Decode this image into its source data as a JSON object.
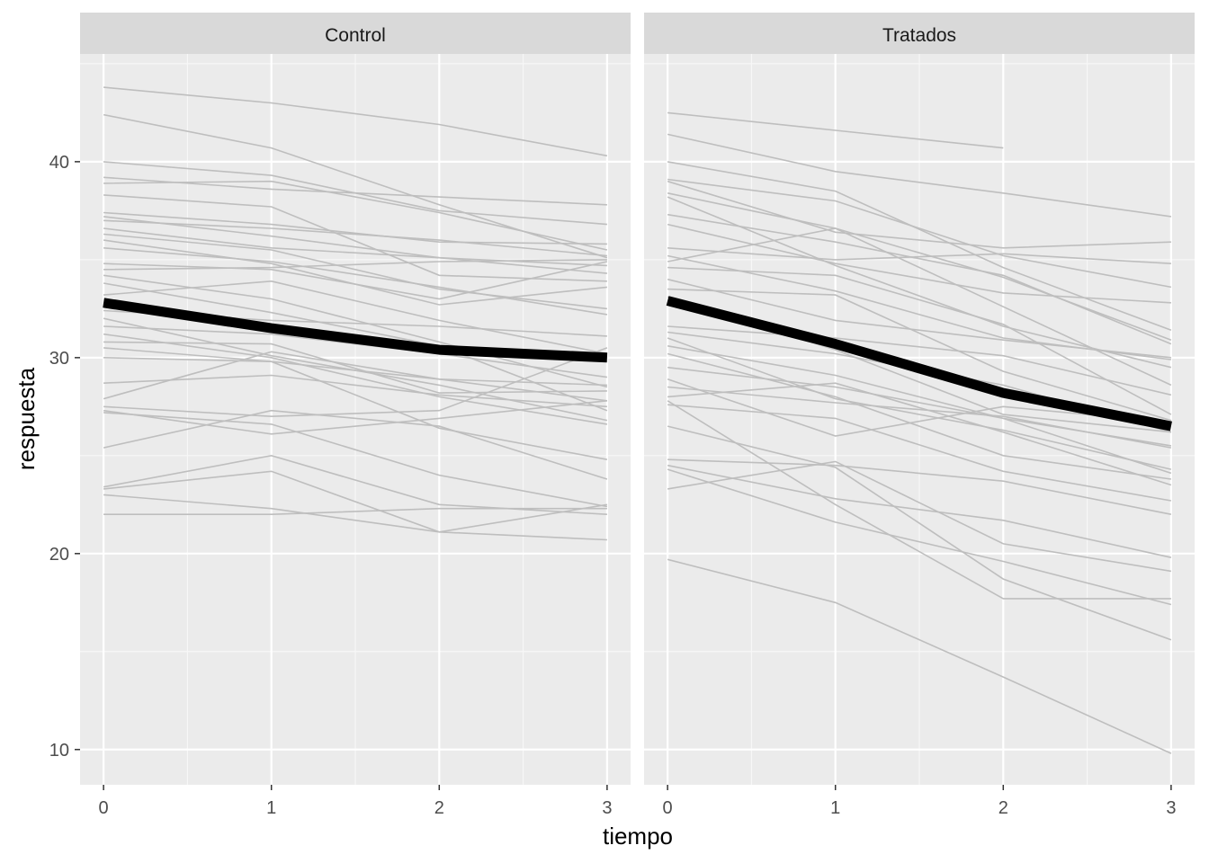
{
  "chart_data": {
    "type": "line",
    "xlabel": "tiempo",
    "ylabel": "respuesta",
    "x": [
      0,
      1,
      2,
      3
    ],
    "x_ticks": [
      "0",
      "1",
      "2",
      "3"
    ],
    "xlim": [
      -0.14,
      3.14
    ],
    "y_ticks": [
      10,
      20,
      30,
      40
    ],
    "ylim": [
      8.2,
      45.5
    ],
    "grid": true,
    "background": "#ebebeb",
    "strip_fill": "#d9d9d9",
    "individual_color": "#bebebe",
    "mean_color": "#000000",
    "panels": [
      {
        "label": "Control",
        "mean": [
          32.8,
          31.5,
          30.4,
          30.0
        ],
        "subjects": [
          [
            43.8,
            43.0,
            41.9,
            40.3
          ],
          [
            42.4,
            40.7,
            37.8,
            35.1
          ],
          [
            40.0,
            39.3,
            37.5,
            36.8
          ],
          [
            39.2,
            38.6,
            38.2,
            37.8
          ],
          [
            38.9,
            39.0,
            37.4,
            35.5
          ],
          [
            38.3,
            37.7,
            34.2,
            33.9
          ],
          [
            37.4,
            36.8,
            35.9,
            35.8
          ],
          [
            37.2,
            36.2,
            35.1,
            34.3
          ],
          [
            37.0,
            36.6,
            36.0,
            35.2
          ],
          [
            36.6,
            35.6,
            35.1,
            34.7
          ],
          [
            36.3,
            35.5,
            33.5,
            32.5
          ],
          [
            36.0,
            34.8,
            32.7,
            33.6
          ],
          [
            35.6,
            34.9,
            33.6,
            32.2
          ],
          [
            34.8,
            34.5,
            33.0,
            34.9
          ],
          [
            34.5,
            34.6,
            34.9,
            35.0
          ],
          [
            34.2,
            33.0,
            30.8,
            28.5
          ],
          [
            33.8,
            32.3,
            30.6,
            27.3
          ],
          [
            33.2,
            33.9,
            31.9,
            30.2
          ],
          [
            32.4,
            31.9,
            31.6,
            31.1
          ],
          [
            32.0,
            30.1,
            28.6,
            26.8
          ],
          [
            31.6,
            31.2,
            30.2,
            29.0
          ],
          [
            31.2,
            30.0,
            28.0,
            26.6
          ],
          [
            30.8,
            30.7,
            28.2,
            28.3
          ],
          [
            30.5,
            29.8,
            28.9,
            28.6
          ],
          [
            30.0,
            29.8,
            26.4,
            24.8
          ],
          [
            28.7,
            29.1,
            28.1,
            27.5
          ],
          [
            27.9,
            30.3,
            28.9,
            27.8
          ],
          [
            27.5,
            27.0,
            27.3,
            30.5
          ],
          [
            27.3,
            26.1,
            26.9,
            27.8
          ],
          [
            27.2,
            26.6,
            24.0,
            22.4
          ],
          [
            25.4,
            27.3,
            26.5,
            23.8
          ],
          [
            23.4,
            25.0,
            22.5,
            22.0
          ],
          [
            23.3,
            24.2,
            21.1,
            22.5
          ],
          [
            23.0,
            22.3,
            21.1,
            20.7
          ],
          [
            22.0,
            22.0,
            22.3,
            22.3
          ]
        ]
      },
      {
        "label": "Tratados",
        "mean": [
          32.9,
          30.7,
          28.2,
          26.5
        ],
        "subjects": [
          [
            42.5,
            41.6,
            40.7
          ],
          [
            41.4,
            39.5,
            38.4,
            37.2
          ],
          [
            40.0,
            38.5,
            34.6,
            31.4
          ],
          [
            39.1,
            38.0,
            35.2,
            33.6
          ],
          [
            39.0,
            36.4,
            35.6,
            35.9
          ],
          [
            38.4,
            36.6,
            34.1,
            30.9
          ],
          [
            38.2,
            34.7,
            31.6,
            29.5
          ],
          [
            37.3,
            35.9,
            34.2,
            30.7
          ],
          [
            36.8,
            34.8,
            33.3,
            32.8
          ],
          [
            35.6,
            35.0,
            35.3,
            34.8
          ],
          [
            35.2,
            33.4,
            31.0,
            29.9
          ],
          [
            34.9,
            36.6,
            32.6,
            28.6
          ],
          [
            34.6,
            34.2,
            31.7,
            27.1
          ],
          [
            34.0,
            31.9,
            30.9,
            30.0
          ],
          [
            33.5,
            33.2,
            29.3,
            26.8
          ],
          [
            33.1,
            30.4,
            27.1,
            26.2
          ],
          [
            31.6,
            31.0,
            30.1,
            28.1
          ],
          [
            31.3,
            30.2,
            28.6,
            26.2
          ],
          [
            31.0,
            27.9,
            26.3,
            24.3
          ],
          [
            30.6,
            29.1,
            26.9,
            25.5
          ],
          [
            30.2,
            28.0,
            25.0,
            23.8
          ],
          [
            29.5,
            28.5,
            26.9,
            24.1
          ],
          [
            28.9,
            26.0,
            27.5,
            26.7
          ],
          [
            28.5,
            27.7,
            27.0,
            25.4
          ],
          [
            28.0,
            28.7,
            26.2,
            23.5
          ],
          [
            27.6,
            26.9,
            24.2,
            22.7
          ],
          [
            24.8,
            24.5,
            23.7,
            22.0
          ],
          [
            24.5,
            22.8,
            21.7,
            19.8
          ],
          [
            24.3,
            21.6,
            19.6,
            17.4
          ],
          [
            23.3,
            24.7,
            20.5,
            19.1
          ],
          [
            19.7,
            17.5,
            13.7,
            9.8
          ],
          [
            27.8,
            22.5,
            17.7,
            17.7
          ],
          [
            26.5,
            24.4,
            18.7,
            15.6
          ]
        ]
      }
    ]
  }
}
